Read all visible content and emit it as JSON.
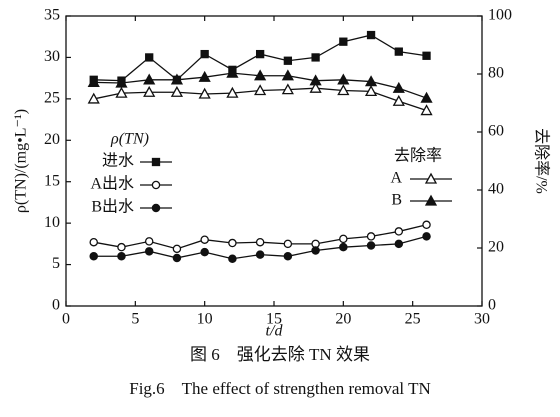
{
  "chart_data": {
    "type": "line",
    "x_label": "t/d",
    "y_label": "ρ(TN)/(mg•L⁻¹)",
    "y2_label": "去除率/%",
    "legend_title": "ρ(TN)",
    "legend2_title": "去除率",
    "caption": "图 6　强化去除 TN 效果",
    "caption_en": "Fig.6　The effect of strengthen removal TN",
    "x": [
      2,
      4,
      6,
      8,
      10,
      12,
      14,
      16,
      18,
      20,
      22,
      24,
      26
    ],
    "xlim": [
      0,
      30
    ],
    "xticks": [
      0,
      5,
      10,
      15,
      20,
      25,
      30
    ],
    "ylim": [
      0,
      35
    ],
    "yticks": [
      0,
      5,
      10,
      15,
      20,
      25,
      30,
      35
    ],
    "y2lim": [
      0,
      100
    ],
    "y2ticks": [
      0,
      20,
      40,
      60,
      80,
      100
    ],
    "series": [
      {
        "name": "进水",
        "color": "#111111",
        "marker": "square",
        "filled": true,
        "values": [
          27.3,
          27.2,
          30.0,
          27.3,
          30.4,
          28.5,
          30.4,
          29.6,
          30.0,
          31.9,
          32.7,
          30.7,
          30.2
        ]
      },
      {
        "name": "A出水",
        "color": "#111111",
        "marker": "circle",
        "filled": false,
        "values": [
          7.7,
          7.1,
          7.8,
          6.9,
          8.0,
          7.6,
          7.7,
          7.5,
          7.5,
          8.1,
          8.4,
          9.0,
          9.8
        ]
      },
      {
        "name": "B出水",
        "color": "#111111",
        "marker": "circle",
        "filled": true,
        "values": [
          6.0,
          6.0,
          6.6,
          5.8,
          6.5,
          5.7,
          6.2,
          6.0,
          6.7,
          7.1,
          7.3,
          7.5,
          8.4
        ]
      },
      {
        "name": "A",
        "color": "#111111",
        "marker": "triangle",
        "filled": false,
        "axis": "y2",
        "values": [
          71.4,
          73.4,
          73.7,
          73.7,
          73.1,
          73.4,
          74.3,
          74.6,
          75.1,
          74.3,
          74.0,
          70.6,
          67.4
        ]
      },
      {
        "name": "B",
        "color": "#111111",
        "marker": "triangle",
        "filled": true,
        "axis": "y2",
        "values": [
          77.1,
          76.9,
          78.0,
          78.0,
          78.9,
          80.3,
          79.4,
          79.4,
          77.7,
          78.0,
          77.4,
          75.1,
          71.7
        ]
      }
    ]
  }
}
